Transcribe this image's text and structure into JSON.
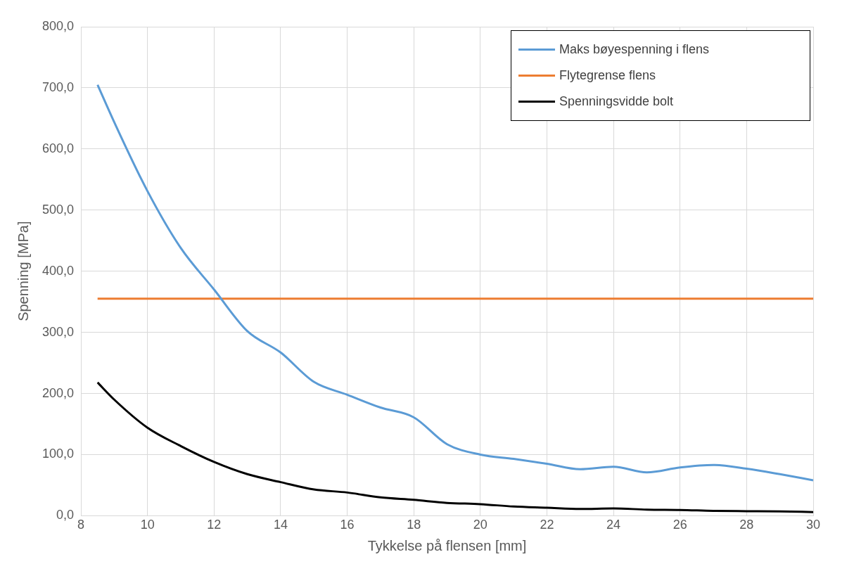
{
  "chart_data": {
    "type": "line",
    "xlabel": "Tykkelse på flensen [mm]",
    "ylabel": "Spenning [MPa]",
    "x": [
      8.5,
      9,
      10,
      11,
      12,
      13,
      14,
      15,
      16,
      17,
      18,
      19,
      20,
      21,
      22,
      23,
      24,
      25,
      26,
      27,
      28,
      29,
      30
    ],
    "series": [
      {
        "name": "Maks bøyespenning i flens",
        "color": "#5b9bd5",
        "values": [
          705,
          644,
          531,
          438,
          370,
          302,
          267,
          219,
          198,
          177,
          161,
          117,
          100,
          93,
          85,
          76,
          80,
          71,
          79,
          83,
          77,
          68,
          58
        ]
      },
      {
        "name": "Flytegrense flens",
        "color": "#ed7d31",
        "x": [
          8.5,
          30
        ],
        "values": [
          355,
          355
        ]
      },
      {
        "name": "Spenningsvidde bolt",
        "color": "#000000",
        "values": [
          218,
          190,
          144,
          114,
          88,
          68,
          55,
          43,
          38,
          30,
          26,
          21,
          19,
          15,
          13,
          11,
          12,
          10,
          9.5,
          8,
          7.5,
          7,
          6
        ]
      }
    ],
    "xlim": [
      8,
      30
    ],
    "xticks": [
      8,
      10,
      12,
      14,
      16,
      18,
      20,
      22,
      24,
      26,
      28,
      30
    ],
    "ylim": [
      0,
      800
    ],
    "yticks": [
      {
        "value": 0,
        "label": "0,0"
      },
      {
        "value": 100,
        "label": "100,0"
      },
      {
        "value": 200,
        "label": "200,0"
      },
      {
        "value": 300,
        "label": "300,0"
      },
      {
        "value": 400,
        "label": "400,0"
      },
      {
        "value": 500,
        "label": "500,0"
      },
      {
        "value": 600,
        "label": "600,0"
      },
      {
        "value": 700,
        "label": "700,0"
      },
      {
        "value": 800,
        "label": "800,0"
      }
    ],
    "grid": true,
    "legend": "top right",
    "marker": "none",
    "line_style": "solid"
  }
}
